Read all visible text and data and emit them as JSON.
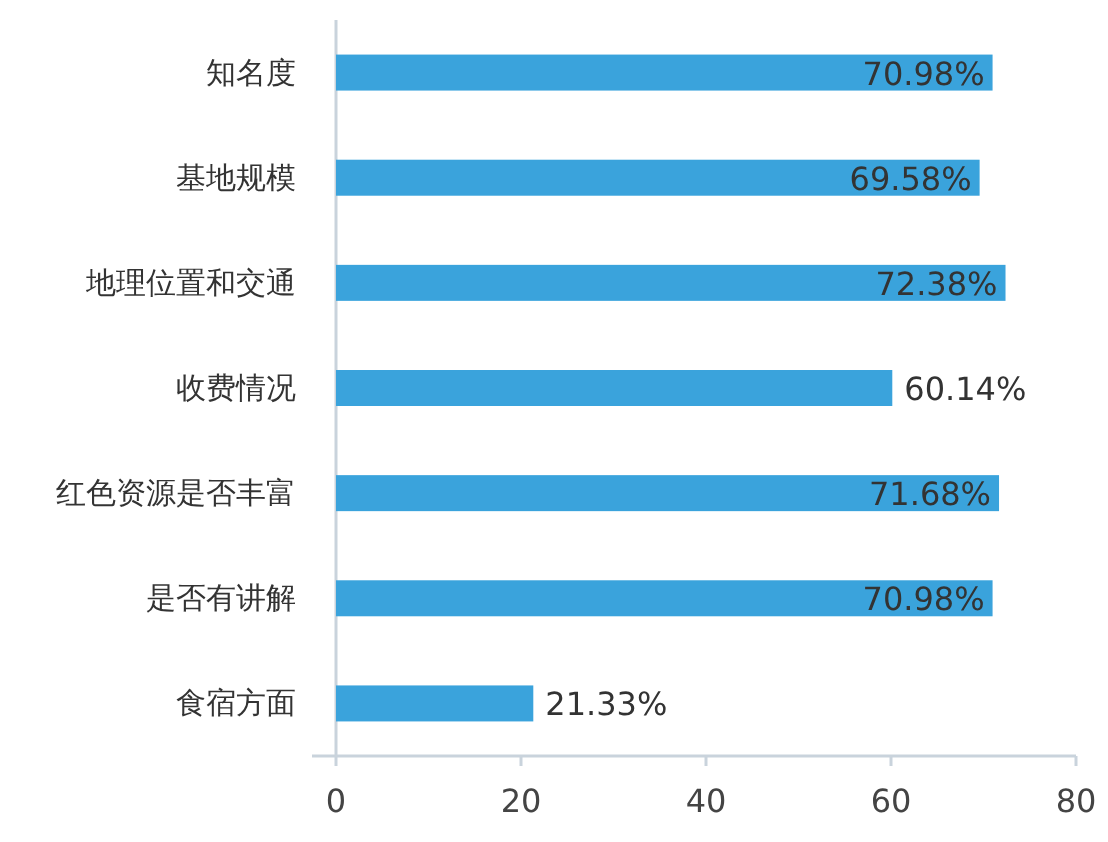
{
  "chart_data": {
    "type": "bar",
    "orientation": "horizontal",
    "categories": [
      "知名度",
      "基地规模",
      "地理位置和交通",
      "收费情况",
      "红色资源是否丰富",
      "是否有讲解",
      "食宿方面"
    ],
    "values": [
      70.98,
      69.58,
      72.38,
      60.14,
      71.68,
      70.98,
      21.33
    ],
    "value_labels": [
      "70.98%",
      "69.58%",
      "72.38%",
      "60.14%",
      "71.68%",
      "70.98%",
      "21.33%"
    ],
    "color": "#3aa3dc",
    "xlim": [
      0,
      80
    ],
    "xticks": [
      0,
      20,
      40,
      60,
      80
    ],
    "grid": false
  }
}
